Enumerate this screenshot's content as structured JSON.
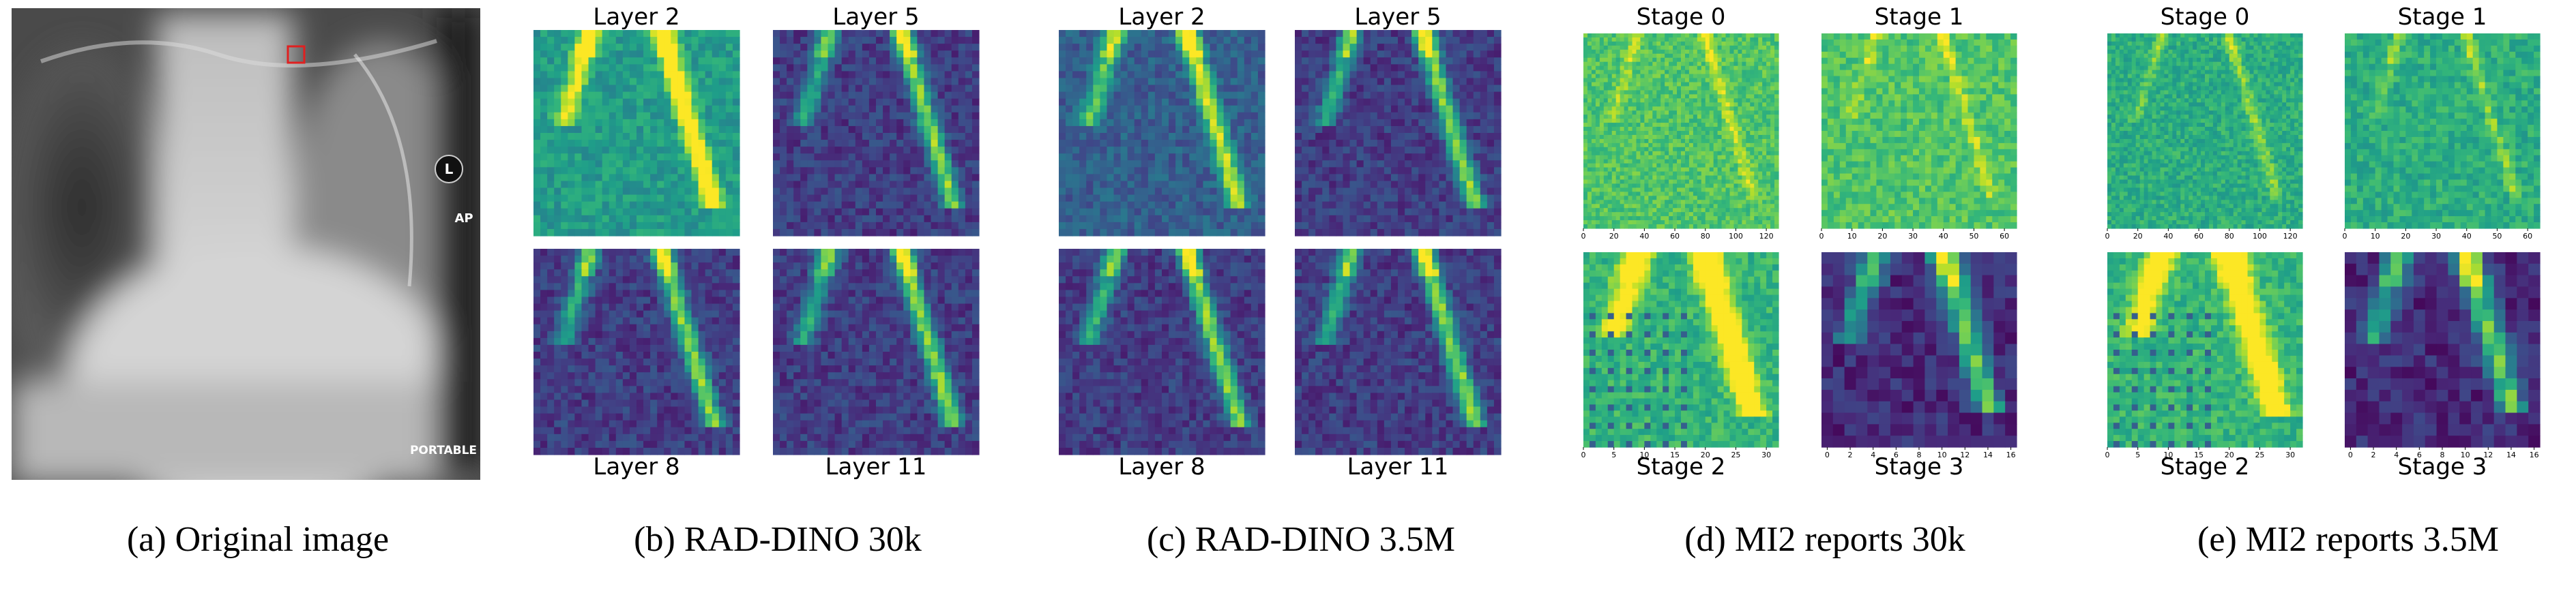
{
  "panels": [
    {
      "caption": "(a) Original image",
      "marks": [
        "L",
        "AP",
        "PORTABLE"
      ]
    },
    {
      "caption": "(b) RAD-DINO 30k",
      "maps": [
        "Layer 2",
        "Layer 5",
        "Layer 8",
        "Layer 11"
      ]
    },
    {
      "caption": "(c) RAD-DINO 3.5M",
      "maps": [
        "Layer 2",
        "Layer 5",
        "Layer 8",
        "Layer 11"
      ]
    },
    {
      "caption": "(d) MI2 reports 30k",
      "maps": [
        {
          "label": "Stage 0",
          "xticks": [
            0,
            20,
            40,
            60,
            80,
            100,
            120
          ]
        },
        {
          "label": "Stage 1",
          "xticks": [
            0,
            10,
            20,
            30,
            40,
            50,
            60
          ]
        },
        {
          "label": "Stage 2",
          "xticks": [
            0,
            5,
            10,
            15,
            20,
            25,
            30
          ]
        },
        {
          "label": "Stage 3",
          "xticks": [
            0,
            2,
            4,
            6,
            8,
            10,
            12,
            14,
            16
          ]
        }
      ]
    },
    {
      "caption": "(e) MI2 reports 3.5M",
      "maps": [
        {
          "label": "Stage 0",
          "xticks": [
            0,
            20,
            40,
            60,
            80,
            100,
            120
          ]
        },
        {
          "label": "Stage 1",
          "xticks": [
            0,
            10,
            20,
            30,
            40,
            50,
            60
          ]
        },
        {
          "label": "Stage 2",
          "xticks": [
            0,
            5,
            10,
            15,
            20,
            25,
            30
          ]
        },
        {
          "label": "Stage 3",
          "xticks": [
            0,
            2,
            4,
            6,
            8,
            10,
            12,
            14,
            16
          ]
        }
      ]
    }
  ]
}
